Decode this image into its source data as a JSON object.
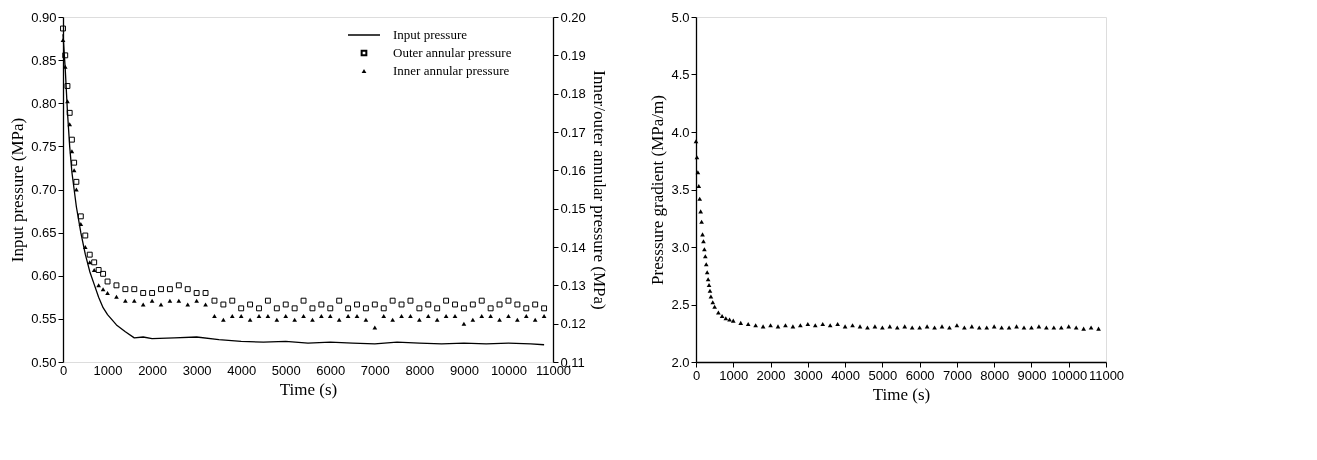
{
  "chart_data": [
    {
      "type": "line",
      "xlabel": "Time (s)",
      "ylabel": "Input pressure (MPa)",
      "y2label": "Inner/outer annular pressure (MPa)",
      "xlim": [
        0,
        11000
      ],
      "xticks": [
        0,
        1000,
        2000,
        3000,
        4000,
        5000,
        6000,
        7000,
        8000,
        9000,
        10000,
        11000
      ],
      "ylim": [
        0.5,
        0.9
      ],
      "yticks": [
        {
          "value": 0.5,
          "label": "0.50"
        },
        {
          "value": 0.55,
          "label": "0.55"
        },
        {
          "value": 0.6,
          "label": "0.60"
        },
        {
          "value": 0.65,
          "label": "0.65"
        },
        {
          "value": 0.7,
          "label": "0.70"
        },
        {
          "value": 0.75,
          "label": "0.75"
        },
        {
          "value": 0.8,
          "label": "0.80"
        },
        {
          "value": 0.85,
          "label": "0.85"
        },
        {
          "value": 0.9,
          "label": "0.90"
        }
      ],
      "y2lim": [
        0.11,
        0.2
      ],
      "y2ticks": [
        0.11,
        0.12,
        0.13,
        0.14,
        0.15,
        0.16,
        0.17,
        0.18,
        0.19,
        {
          "value": 0.2,
          "label": "0.20"
        }
      ],
      "legend": "top right",
      "series": [
        {
          "name": "Input pressure",
          "type": "line",
          "color": "#000000",
          "line_style": "solid",
          "marker": "none",
          "x": [
            0,
            50,
            100,
            150,
            200,
            300,
            400,
            500,
            600,
            700,
            800,
            900,
            1000,
            1200,
            1400,
            1600,
            1800,
            2000,
            2500,
            3000,
            3500,
            4000,
            4500,
            5000,
            5500,
            6000,
            6500,
            7000,
            7500,
            8000,
            8500,
            9000,
            9500,
            10000,
            10500,
            10800
          ],
          "values": [
            0.88,
            0.84,
            0.79,
            0.75,
            0.72,
            0.68,
            0.65,
            0.625,
            0.605,
            0.59,
            0.575,
            0.563,
            0.555,
            0.543,
            0.535,
            0.528,
            0.529,
            0.527,
            0.528,
            0.529,
            0.526,
            0.524,
            0.523,
            0.524,
            0.522,
            0.523,
            0.522,
            0.521,
            0.523,
            0.522,
            0.521,
            0.522,
            0.521,
            0.522,
            0.521,
            0.52
          ]
        },
        {
          "name": "Outer annular pressure",
          "type": "scatter",
          "axis": "y2",
          "color": "#000000",
          "marker": "square",
          "x": [
            0,
            50,
            100,
            150,
            200,
            250,
            300,
            400,
            500,
            600,
            700,
            800,
            900,
            1000,
            1200,
            1400,
            1600,
            1800,
            2000,
            2200,
            2400,
            2600,
            2800,
            3000,
            3200,
            3400,
            3600,
            3800,
            4000,
            4200,
            4400,
            4600,
            4800,
            5000,
            5200,
            5400,
            5600,
            5800,
            6000,
            6200,
            6400,
            6600,
            6800,
            7000,
            7200,
            7400,
            7600,
            7800,
            8000,
            8200,
            8400,
            8600,
            8800,
            9000,
            9200,
            9400,
            9600,
            9800,
            10000,
            10200,
            10400,
            10600,
            10800
          ],
          "values": [
            0.197,
            0.19,
            0.182,
            0.175,
            0.168,
            0.162,
            0.157,
            0.148,
            0.143,
            0.138,
            0.136,
            0.134,
            0.133,
            0.131,
            0.13,
            0.129,
            0.129,
            0.128,
            0.128,
            0.129,
            0.129,
            0.13,
            0.129,
            0.128,
            0.128,
            0.126,
            0.125,
            0.126,
            0.124,
            0.125,
            0.124,
            0.126,
            0.124,
            0.125,
            0.124,
            0.126,
            0.124,
            0.125,
            0.124,
            0.126,
            0.124,
            0.125,
            0.124,
            0.125,
            0.124,
            0.126,
            0.125,
            0.126,
            0.124,
            0.125,
            0.124,
            0.126,
            0.125,
            0.124,
            0.125,
            0.126,
            0.124,
            0.125,
            0.126,
            0.125,
            0.124,
            0.125,
            0.124
          ]
        },
        {
          "name": "Inner annular pressure",
          "type": "scatter",
          "axis": "y2",
          "color": "#000000",
          "marker": "triangle",
          "x": [
            0,
            50,
            100,
            150,
            200,
            250,
            300,
            400,
            500,
            600,
            700,
            800,
            900,
            1000,
            1200,
            1400,
            1600,
            1800,
            2000,
            2200,
            2400,
            2600,
            2800,
            3000,
            3200,
            3400,
            3600,
            3800,
            4000,
            4200,
            4400,
            4600,
            4800,
            5000,
            5200,
            5400,
            5600,
            5800,
            6000,
            6200,
            6400,
            6600,
            6800,
            7000,
            7200,
            7400,
            7600,
            7800,
            8000,
            8200,
            8400,
            8600,
            8800,
            9000,
            9200,
            9400,
            9600,
            9800,
            10000,
            10200,
            10400,
            10600,
            10800
          ],
          "values": [
            0.194,
            0.187,
            0.178,
            0.172,
            0.165,
            0.16,
            0.155,
            0.146,
            0.14,
            0.136,
            0.134,
            0.13,
            0.129,
            0.128,
            0.127,
            0.126,
            0.126,
            0.125,
            0.126,
            0.125,
            0.126,
            0.126,
            0.125,
            0.126,
            0.125,
            0.122,
            0.121,
            0.122,
            0.122,
            0.121,
            0.122,
            0.122,
            0.121,
            0.122,
            0.121,
            0.122,
            0.121,
            0.122,
            0.122,
            0.121,
            0.122,
            0.122,
            0.121,
            0.119,
            0.122,
            0.121,
            0.122,
            0.122,
            0.121,
            0.122,
            0.121,
            0.122,
            0.122,
            0.12,
            0.121,
            0.122,
            0.122,
            0.121,
            0.122,
            0.121,
            0.122,
            0.121,
            0.122
          ]
        }
      ]
    },
    {
      "type": "scatter",
      "xlabel": "Time (s)",
      "ylabel": "Presssure gradient (MPa/m)",
      "xlim": [
        0,
        11000
      ],
      "xticks": [
        0,
        1000,
        2000,
        3000,
        4000,
        5000,
        6000,
        7000,
        8000,
        9000,
        10000,
        11000
      ],
      "ylim": [
        2.0,
        5.0
      ],
      "yticks": [
        {
          "value": 2.0,
          "label": "2.0"
        },
        2.5,
        {
          "value": 3.0,
          "label": "3.0"
        },
        3.5,
        {
          "value": 4.0,
          "label": "4.0"
        },
        4.5,
        {
          "value": 5.0,
          "label": "5.0"
        }
      ],
      "series": [
        {
          "color": "#000000",
          "marker": "triangle",
          "x": [
            0,
            25,
            50,
            75,
            100,
            125,
            150,
            175,
            200,
            225,
            250,
            275,
            300,
            325,
            350,
            375,
            400,
            450,
            500,
            600,
            700,
            800,
            900,
            1000,
            1200,
            1400,
            1600,
            1800,
            2000,
            2200,
            2400,
            2600,
            2800,
            3000,
            3200,
            3400,
            3600,
            3800,
            4000,
            4200,
            4400,
            4600,
            4800,
            5000,
            5200,
            5400,
            5600,
            5800,
            6000,
            6200,
            6400,
            6600,
            6800,
            7000,
            7200,
            7400,
            7600,
            7800,
            8000,
            8200,
            8400,
            8600,
            8800,
            9000,
            9200,
            9400,
            9600,
            9800,
            10000,
            10200,
            10400,
            10600,
            10800
          ],
          "values": [
            3.92,
            3.78,
            3.65,
            3.53,
            3.42,
            3.31,
            3.22,
            3.11,
            3.05,
            2.98,
            2.92,
            2.85,
            2.78,
            2.72,
            2.67,
            2.62,
            2.57,
            2.52,
            2.48,
            2.43,
            2.4,
            2.38,
            2.37,
            2.36,
            2.34,
            2.33,
            2.32,
            2.31,
            2.32,
            2.31,
            2.32,
            2.31,
            2.32,
            2.33,
            2.32,
            2.33,
            2.32,
            2.33,
            2.31,
            2.32,
            2.31,
            2.3,
            2.31,
            2.3,
            2.31,
            2.3,
            2.31,
            2.3,
            2.3,
            2.31,
            2.3,
            2.31,
            2.3,
            2.32,
            2.3,
            2.31,
            2.3,
            2.3,
            2.31,
            2.3,
            2.3,
            2.31,
            2.3,
            2.3,
            2.31,
            2.3,
            2.3,
            2.3,
            2.31,
            2.3,
            2.29,
            2.3,
            2.29
          ]
        }
      ]
    }
  ]
}
